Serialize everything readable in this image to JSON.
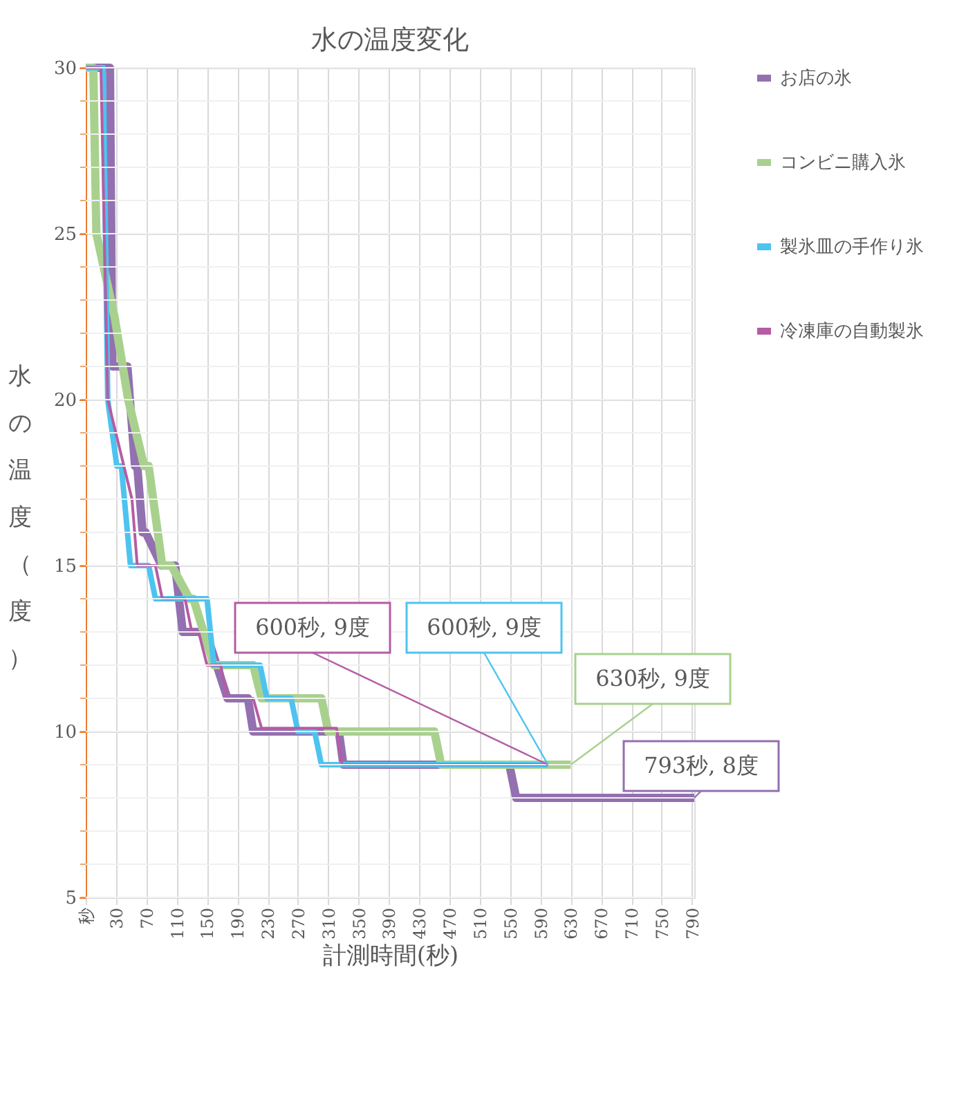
{
  "chart_data": {
    "type": "line",
    "title": "水の温度変化",
    "xlabel": "計測時間(秒)",
    "ylabel": "水の温度（度）",
    "xlim": [
      -10,
      793
    ],
    "ylim": [
      5,
      30
    ],
    "xticks": [
      {
        "value": -10,
        "label": "秒"
      },
      30,
      70,
      110,
      150,
      190,
      230,
      270,
      310,
      350,
      390,
      430,
      470,
      510,
      550,
      590,
      630,
      670,
      710,
      750,
      790
    ],
    "yticks": [
      5,
      10,
      15,
      20,
      25,
      30
    ],
    "grid": true,
    "legend": "right",
    "marker": "none",
    "line_style": "solid",
    "series": [
      {
        "name": "お店の氷",
        "color": "#9370b0",
        "x": [
          -10,
          22,
          25,
          45,
          55,
          58,
          65,
          69,
          90,
          108,
          118,
          139,
          150,
          177,
          204,
          211,
          324,
          330,
          549,
          558,
          793
        ],
        "values": [
          30,
          30,
          21,
          21,
          18,
          18,
          16,
          16,
          15,
          15,
          13,
          13,
          12.9,
          11,
          11,
          10,
          10,
          9,
          9,
          8,
          8
        ]
      },
      {
        "name": "コンビニ購入氷",
        "color": "#a9d18e",
        "x": [
          -10,
          0,
          4,
          28,
          46,
          67,
          73,
          91,
          103,
          127,
          132,
          159,
          211,
          222,
          301,
          310,
          450,
          459,
          630
        ],
        "values": [
          30,
          30,
          25,
          22.5,
          20,
          18,
          18,
          15,
          15,
          14,
          14,
          12,
          12,
          11,
          11,
          10,
          10,
          9,
          9
        ]
      },
      {
        "name": "製氷皿の手作り氷",
        "color": "#4dc3f0",
        "x": [
          -10,
          13,
          19,
          31,
          37,
          49,
          73,
          82,
          150,
          159,
          220,
          229,
          261,
          270,
          292,
          301,
          600
        ],
        "values": [
          30,
          30,
          20,
          18,
          18,
          15,
          15,
          14,
          14,
          12,
          12,
          11,
          11,
          10,
          10,
          9,
          9
        ]
      },
      {
        "name": "冷凍庫の自動製氷",
        "color": "#b55ca4",
        "x": [
          -10,
          10,
          19,
          51,
          58,
          82,
          91,
          121,
          130,
          139,
          150,
          168,
          177,
          211,
          222,
          321,
          328,
          600
        ],
        "values": [
          30,
          30,
          20,
          17,
          15,
          15,
          14,
          14,
          13,
          13,
          12,
          12,
          11,
          11,
          10.1,
          10.1,
          9,
          9
        ]
      }
    ],
    "annotations": [
      {
        "text": "600秒, 9度",
        "x": 600,
        "y": 9
      },
      {
        "text": "600秒, 9度",
        "x": 600,
        "y": 9
      },
      {
        "text": "630秒, 9度",
        "x": 630,
        "y": 9
      },
      {
        "text": "793秒, 8度",
        "x": 793,
        "y": 8
      }
    ]
  }
}
